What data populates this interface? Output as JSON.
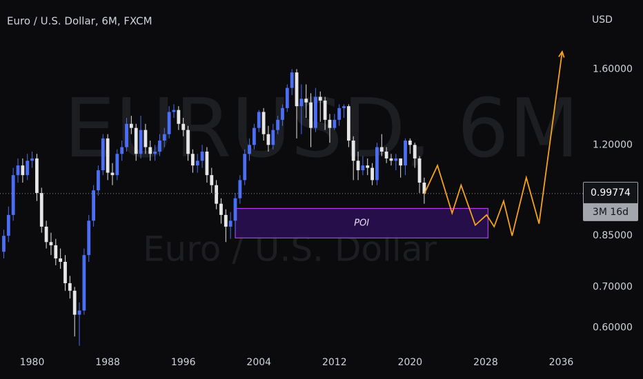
{
  "chart_data": {
    "type": "candlestick",
    "title": "Euro / U.S. Dollar, 6M, FXCM",
    "watermark": "EURUSD, 6M",
    "watermark_sub": "Euro / U.S. Dollar",
    "currency": "USD",
    "log_scale": true,
    "up_color": "#4c6ef5",
    "down_color": "#e6e6e6",
    "xlim": [
      1976.6,
      2038.3
    ],
    "ylim": [
      0.548,
      2.08
    ],
    "xticks": [
      1980,
      1988,
      1996,
      2004,
      2012,
      2020,
      2028,
      2036
    ],
    "yticks": [
      {
        "value": 0.6,
        "label": "0.60000"
      },
      {
        "value": 0.7,
        "label": "0.70000"
      },
      {
        "value": 0.85,
        "label": "0.85000"
      },
      {
        "value": 1.2,
        "label": "1.20000"
      },
      {
        "value": 1.6,
        "label": "1.60000"
      }
    ],
    "x": [
      1977,
      1977.5,
      1978,
      1978.5,
      1979,
      1979.5,
      1980,
      1980.5,
      1981,
      1981.5,
      1982,
      1982.5,
      1983,
      1983.5,
      1984,
      1984.5,
      1985,
      1985.5,
      1986,
      1986.5,
      1987,
      1987.5,
      1988,
      1988.5,
      1989,
      1989.5,
      1990,
      1990.5,
      1991,
      1991.5,
      1992,
      1992.5,
      1993,
      1993.5,
      1994,
      1994.5,
      1995,
      1995.5,
      1996,
      1996.5,
      1997,
      1997.5,
      1998,
      1998.5,
      1999,
      1999.5,
      2000,
      2000.5,
      2001,
      2001.5,
      2002,
      2002.5,
      2003,
      2003.5,
      2004,
      2004.5,
      2005,
      2005.5,
      2006,
      2006.5,
      2007,
      2007.5,
      2008,
      2008.5,
      2009,
      2009.5,
      2010,
      2010.5,
      2011,
      2011.5,
      2012,
      2012.5,
      2013,
      2013.5,
      2014,
      2014.5,
      2015,
      2015.5,
      2016,
      2016.5,
      2017,
      2017.5,
      2018,
      2018.5,
      2019,
      2019.5,
      2020,
      2020.5,
      2021,
      2021.5
    ],
    "candles": [
      [
        0.8,
        0.87,
        0.78,
        0.85
      ],
      [
        0.85,
        0.95,
        0.83,
        0.92
      ],
      [
        0.92,
        1.1,
        0.9,
        1.07
      ],
      [
        1.07,
        1.14,
        1.04,
        1.11
      ],
      [
        1.11,
        1.14,
        1.04,
        1.07
      ],
      [
        1.07,
        1.16,
        1.05,
        1.13
      ],
      [
        1.13,
        1.17,
        1.1,
        1.14
      ],
      [
        1.14,
        1.16,
        0.97,
        1.0
      ],
      [
        1.0,
        1.02,
        0.86,
        0.88
      ],
      [
        0.88,
        0.9,
        0.81,
        0.83
      ],
      [
        0.83,
        0.86,
        0.79,
        0.82
      ],
      [
        0.82,
        0.84,
        0.76,
        0.78
      ],
      [
        0.78,
        0.81,
        0.75,
        0.77
      ],
      [
        0.77,
        0.79,
        0.69,
        0.71
      ],
      [
        0.71,
        0.73,
        0.67,
        0.69
      ],
      [
        0.69,
        0.7,
        0.58,
        0.63
      ],
      [
        0.63,
        0.66,
        0.56,
        0.64
      ],
      [
        0.64,
        0.81,
        0.63,
        0.79
      ],
      [
        0.79,
        0.92,
        0.77,
        0.9
      ],
      [
        0.9,
        1.03,
        0.88,
        1.01
      ],
      [
        1.01,
        1.11,
        0.99,
        1.09
      ],
      [
        1.09,
        1.25,
        1.07,
        1.23
      ],
      [
        1.23,
        1.25,
        1.05,
        1.08
      ],
      [
        1.08,
        1.12,
        1.03,
        1.07
      ],
      [
        1.07,
        1.18,
        1.05,
        1.16
      ],
      [
        1.16,
        1.22,
        1.13,
        1.19
      ],
      [
        1.19,
        1.33,
        1.17,
        1.3
      ],
      [
        1.3,
        1.34,
        1.25,
        1.28
      ],
      [
        1.28,
        1.3,
        1.13,
        1.16
      ],
      [
        1.16,
        1.34,
        1.14,
        1.27
      ],
      [
        1.27,
        1.3,
        1.16,
        1.19
      ],
      [
        1.19,
        1.22,
        1.13,
        1.16
      ],
      [
        1.16,
        1.2,
        1.13,
        1.17
      ],
      [
        1.17,
        1.25,
        1.15,
        1.22
      ],
      [
        1.22,
        1.28,
        1.19,
        1.25
      ],
      [
        1.25,
        1.39,
        1.23,
        1.36
      ],
      [
        1.36,
        1.4,
        1.33,
        1.37
      ],
      [
        1.37,
        1.39,
        1.27,
        1.3
      ],
      [
        1.3,
        1.33,
        1.24,
        1.27
      ],
      [
        1.27,
        1.29,
        1.13,
        1.16
      ],
      [
        1.16,
        1.18,
        1.08,
        1.11
      ],
      [
        1.11,
        1.16,
        1.08,
        1.13
      ],
      [
        1.13,
        1.2,
        1.1,
        1.17
      ],
      [
        1.17,
        1.19,
        1.04,
        1.07
      ],
      [
        1.07,
        1.1,
        1.0,
        1.03
      ],
      [
        1.03,
        1.05,
        0.94,
        0.96
      ],
      [
        0.96,
        0.98,
        0.89,
        0.92
      ],
      [
        0.92,
        0.94,
        0.83,
        0.88
      ],
      [
        0.88,
        0.93,
        0.84,
        0.9
      ],
      [
        0.9,
        1.0,
        0.86,
        0.98
      ],
      [
        0.98,
        1.07,
        0.96,
        1.05
      ],
      [
        1.05,
        1.18,
        1.03,
        1.16
      ],
      [
        1.16,
        1.23,
        1.13,
        1.2
      ],
      [
        1.2,
        1.3,
        1.18,
        1.28
      ],
      [
        1.28,
        1.37,
        1.26,
        1.36
      ],
      [
        1.36,
        1.38,
        1.22,
        1.25
      ],
      [
        1.25,
        1.29,
        1.17,
        1.2
      ],
      [
        1.2,
        1.3,
        1.18,
        1.27
      ],
      [
        1.27,
        1.34,
        1.25,
        1.32
      ],
      [
        1.32,
        1.4,
        1.29,
        1.38
      ],
      [
        1.38,
        1.51,
        1.36,
        1.49
      ],
      [
        1.49,
        1.6,
        1.45,
        1.58
      ],
      [
        1.58,
        1.6,
        1.23,
        1.39
      ],
      [
        1.39,
        1.51,
        1.25,
        1.43
      ],
      [
        1.43,
        1.51,
        1.33,
        1.41
      ],
      [
        1.41,
        1.46,
        1.19,
        1.28
      ],
      [
        1.28,
        1.49,
        1.26,
        1.44
      ],
      [
        1.44,
        1.47,
        1.31,
        1.42
      ],
      [
        1.42,
        1.44,
        1.27,
        1.32
      ],
      [
        1.32,
        1.35,
        1.21,
        1.28
      ],
      [
        1.28,
        1.35,
        1.27,
        1.32
      ],
      [
        1.32,
        1.4,
        1.29,
        1.38
      ],
      [
        1.38,
        1.4,
        1.33,
        1.39
      ],
      [
        1.39,
        1.4,
        1.19,
        1.22
      ],
      [
        1.22,
        1.24,
        1.05,
        1.13
      ],
      [
        1.13,
        1.17,
        1.05,
        1.09
      ],
      [
        1.09,
        1.15,
        1.07,
        1.11
      ],
      [
        1.11,
        1.14,
        1.07,
        1.1
      ],
      [
        1.1,
        1.12,
        1.03,
        1.05
      ],
      [
        1.05,
        1.21,
        1.03,
        1.19
      ],
      [
        1.19,
        1.25,
        1.15,
        1.17
      ],
      [
        1.17,
        1.19,
        1.12,
        1.14
      ],
      [
        1.14,
        1.16,
        1.11,
        1.13
      ],
      [
        1.13,
        1.16,
        1.09,
        1.14
      ],
      [
        1.14,
        1.14,
        1.06,
        1.11
      ],
      [
        1.11,
        1.23,
        1.07,
        1.22
      ],
      [
        1.22,
        1.23,
        1.16,
        1.2
      ],
      [
        1.2,
        1.21,
        1.1,
        1.14
      ],
      [
        1.14,
        1.15,
        1.0,
        1.04
      ],
      [
        1.04,
        1.06,
        0.96,
        0.99774
      ]
    ],
    "last_price": {
      "value": 0.99774,
      "label": "0.99774",
      "countdown": "3M 16d"
    },
    "forecast": {
      "color": "#f7a21b",
      "x": [
        2021.5,
        2022.9,
        2024.45,
        2025.4,
        2026.9,
        2028.1,
        2028.9,
        2029.9,
        2030.8,
        2032.3,
        2033.65,
        2036.1
      ],
      "values": [
        0.996,
        1.11,
        0.926,
        1.03,
        0.885,
        0.92,
        0.88,
        0.97,
        0.85,
        1.06,
        0.89,
        1.71
      ]
    },
    "zone": {
      "label": "POI",
      "color": "#b13ee8",
      "x": [
        2001.5,
        2028.25
      ],
      "y": [
        0.843,
        0.943
      ]
    }
  }
}
